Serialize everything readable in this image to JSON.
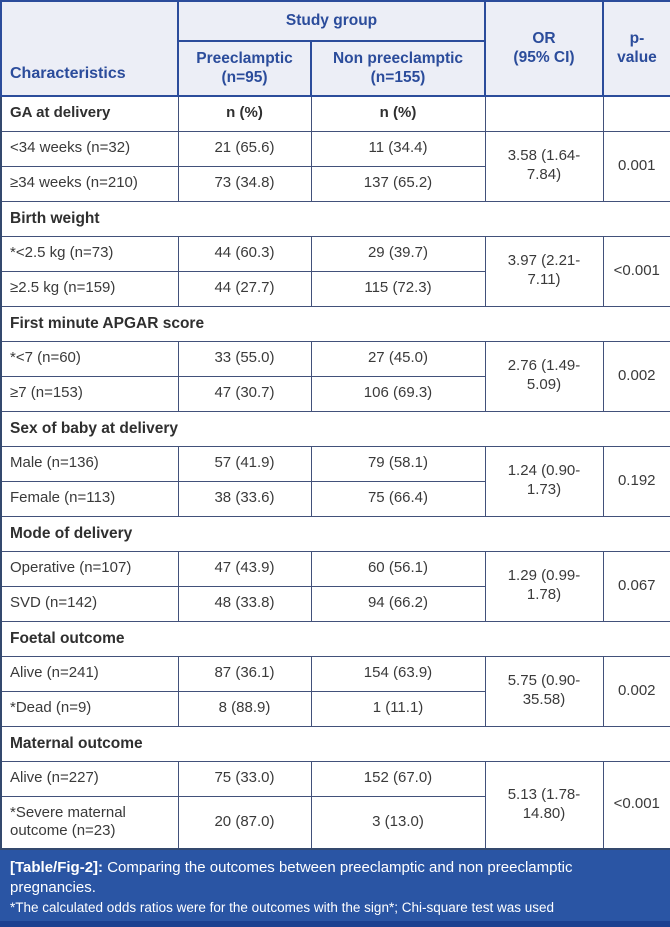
{
  "table": {
    "header": {
      "characteristics": "Characteristics",
      "study_group": "Study group",
      "preeclamptic": "Preeclamptic\n(n=95)",
      "non_preeclamptic": "Non preeclamptic\n(n=155)",
      "or": "OR\n(95% CI)",
      "p_value": "p-\nvalue"
    },
    "sections": [
      {
        "title": "GA at delivery",
        "subhead_pre": "n (%)",
        "subhead_non": "n (%)",
        "rows": [
          {
            "label": "<34 weeks (n=32)",
            "pre": "21 (65.6)",
            "non": "11 (34.4)"
          },
          {
            "label": "≥34 weeks (n=210)",
            "pre": "73 (34.8)",
            "non": "137 (65.2)"
          }
        ],
        "or": "3.58 (1.64-\n7.84)",
        "p": "0.001"
      },
      {
        "title": "Birth weight",
        "rows": [
          {
            "label": "*<2.5 kg (n=73)",
            "pre": "44 (60.3)",
            "non": "29 (39.7)"
          },
          {
            "label": "≥2.5 kg (n=159)",
            "pre": "44 (27.7)",
            "non": "115 (72.3)"
          }
        ],
        "or": "3.97 (2.21-\n7.11)",
        "p": "<0.001"
      },
      {
        "title": "First minute APGAR score",
        "rows": [
          {
            "label": "*<7 (n=60)",
            "pre": "33 (55.0)",
            "non": "27 (45.0)"
          },
          {
            "label": "≥7 (n=153)",
            "pre": "47 (30.7)",
            "non": "106 (69.3)"
          }
        ],
        "or": "2.76 (1.49-\n5.09)",
        "p": "0.002"
      },
      {
        "title": "Sex of baby at delivery",
        "rows": [
          {
            "label": "Male (n=136)",
            "pre": "57 (41.9)",
            "non": "79 (58.1)"
          },
          {
            "label": "Female (n=113)",
            "pre": "38 (33.6)",
            "non": "75 (66.4)"
          }
        ],
        "or": "1.24 (0.90-\n1.73)",
        "p": "0.192"
      },
      {
        "title": "Mode of delivery",
        "rows": [
          {
            "label": "Operative (n=107)",
            "pre": "47 (43.9)",
            "non": "60 (56.1)"
          },
          {
            "label": "SVD (n=142)",
            "pre": "48 (33.8)",
            "non": "94 (66.2)"
          }
        ],
        "or": "1.29 (0.99-\n1.78)",
        "p": "0.067"
      },
      {
        "title": "Foetal outcome",
        "rows": [
          {
            "label": "Alive (n=241)",
            "pre": "87 (36.1)",
            "non": "154 (63.9)"
          },
          {
            "label": "*Dead (n=9)",
            "pre": "8 (88.9)",
            "non": "1 (11.1)"
          }
        ],
        "or": "5.75 (0.90-\n35.58)",
        "p": "0.002"
      },
      {
        "title": "Maternal outcome",
        "rows": [
          {
            "label": "Alive (n=227)",
            "pre": "75 (33.0)",
            "non": "152 (67.0)"
          },
          {
            "label": "*Severe maternal outcome (n=23)",
            "pre": "20 (87.0)",
            "non": "3 (13.0)"
          }
        ],
        "or": "5.13 (1.78-\n14.80)",
        "p": "<0.001"
      }
    ]
  },
  "caption": {
    "label": "[Table/Fig-2]:",
    "text": " Comparing the outcomes between preeclamptic and non preeclamptic pregnancies.",
    "footnote": "*The calculated odds ratios were for the outcomes with the sign*; Chi-square test was used"
  },
  "colors": {
    "header_bg": "#eceef6",
    "header_text": "#2b4c9b",
    "caption_bg": "#2a55a4",
    "caption_strip": "#1c4090",
    "border_outer": "#34496e",
    "border_inner": "#42517a",
    "body_text": "#3a3a3a"
  }
}
